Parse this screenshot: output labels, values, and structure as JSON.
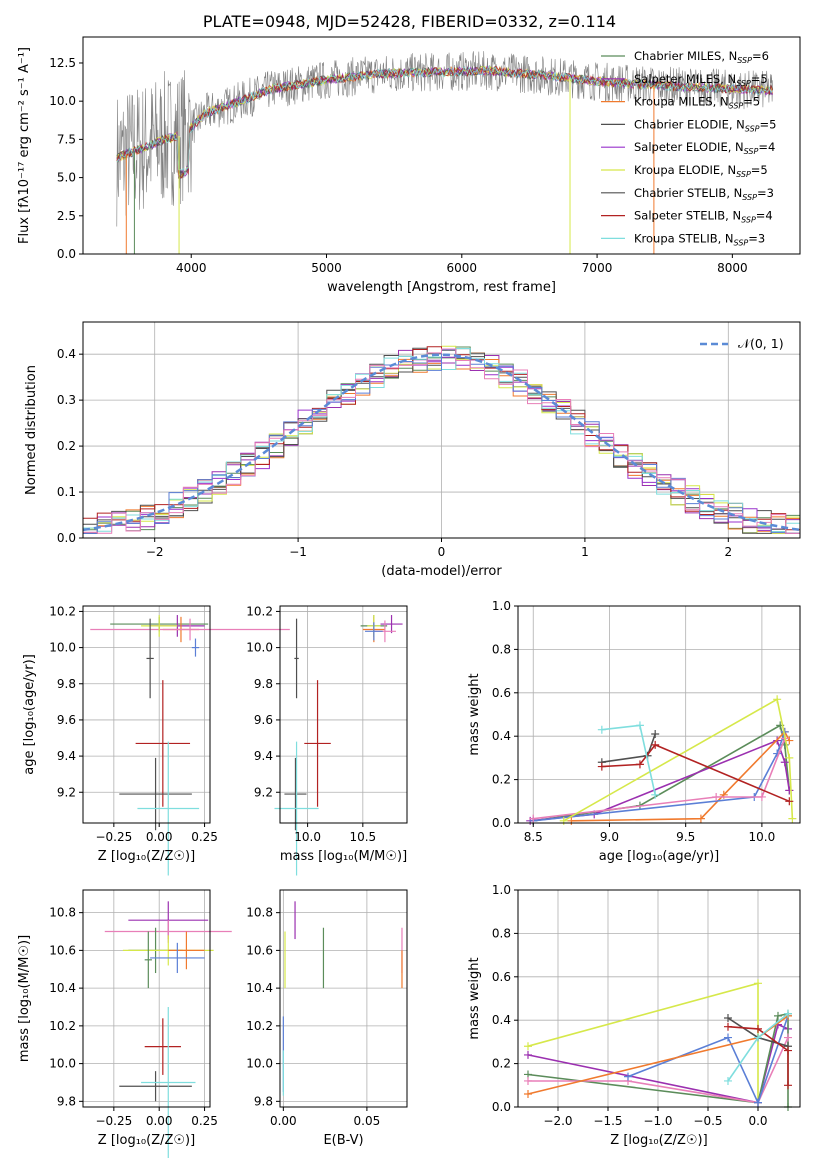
{
  "figure": {
    "title": "PLATE=0948, MJD=52428, FIBERID=0332, z=0.114",
    "colors": {
      "chabrier_miles": "#5b8c5a",
      "salpeter_miles": "#9b30b0",
      "kroupa_miles": "#f07a2e",
      "chabrier_elodie": "#4f4f4f",
      "salpeter_elodie": "#9932cc",
      "kroupa_elodie": "#d6e84a",
      "chabrier_stelib": "#505050",
      "salpeter_stelib": "#b22222",
      "kroupa_stelib": "#7fdede",
      "blue": "#5b7fd6",
      "pink": "#e87fb8",
      "gray": "#808080",
      "normal": "#5b8bd6"
    }
  },
  "chart_data": [
    {
      "type": "line",
      "id": "spectrum",
      "xlabel": "wavelength [Angstrom, rest frame]",
      "ylabel": "Flux [fλ10⁻¹⁷ erg cm⁻² s⁻¹ A⁻¹]",
      "xlim": [
        3200,
        8500
      ],
      "ylim": [
        0,
        14.2
      ],
      "xticks": [
        4000,
        5000,
        6000,
        7000,
        8000
      ],
      "yticks": [
        0.0,
        2.5,
        5.0,
        7.5,
        10.0,
        12.5
      ],
      "legend": "top-right",
      "series": [
        {
          "name": "Chabrier MILES, N_SSP=6",
          "label_main": "Chabrier MILES, N",
          "label_sub": "SSP",
          "label_end": "=6",
          "color": "#5b8c5a"
        },
        {
          "name": "Salpeter MILES, N_SSP=5",
          "label_main": "Salpeter MILES, N",
          "label_sub": "SSP",
          "label_end": "=5",
          "color": "#9b30b0"
        },
        {
          "name": "Kroupa MILES, N_SSP=5",
          "label_main": "Kroupa MILES, N",
          "label_sub": "SSP",
          "label_end": "=5",
          "color": "#f07a2e"
        },
        {
          "name": "Chabrier ELODIE, N_SSP=5",
          "label_main": "Chabrier ELODIE, N",
          "label_sub": "SSP",
          "label_end": "=5",
          "color": "#4f4f4f"
        },
        {
          "name": "Salpeter ELODIE, N_SSP=4",
          "label_main": "Salpeter ELODIE, N",
          "label_sub": "SSP",
          "label_end": "=4",
          "color": "#9932cc"
        },
        {
          "name": "Kroupa ELODIE, N_SSP=5",
          "label_main": "Kroupa ELODIE, N",
          "label_sub": "SSP",
          "label_end": "=5",
          "color": "#d6e84a"
        },
        {
          "name": "Chabrier STELIB, N_SSP=3",
          "label_main": "Chabrier STELIB, N",
          "label_sub": "SSP",
          "label_end": "=3",
          "color": "#505050"
        },
        {
          "name": "Salpeter STELIB, N_SSP=4",
          "label_main": "Salpeter STELIB, N",
          "label_sub": "SSP",
          "label_end": "=4",
          "color": "#b22222"
        },
        {
          "name": "Kroupa STELIB, N_SSP=3",
          "label_main": "Kroupa STELIB, N",
          "label_sub": "SSP",
          "label_end": "=3",
          "color": "#7fdede"
        }
      ],
      "continuum": [
        [
          3450,
          6.3
        ],
        [
          3600,
          6.8
        ],
        [
          3800,
          7.5
        ],
        [
          3950,
          7.8
        ],
        [
          4100,
          9.2
        ],
        [
          4300,
          9.8
        ],
        [
          4600,
          10.8
        ],
        [
          5000,
          11.4
        ],
        [
          5400,
          11.8
        ],
        [
          5800,
          11.9
        ],
        [
          6200,
          12.0
        ],
        [
          6600,
          11.7
        ],
        [
          7000,
          11.3
        ],
        [
          7500,
          11.0
        ],
        [
          8000,
          10.8
        ],
        [
          8300,
          10.7
        ]
      ]
    },
    {
      "type": "bar",
      "id": "residuals",
      "xlabel": "(data-model)/error",
      "ylabel": "Normed distribution",
      "xlim": [
        -2.5,
        2.5
      ],
      "ylim": [
        0,
        0.47
      ],
      "xticks": [
        -2,
        -1,
        0,
        1,
        2
      ],
      "yticks": [
        0.0,
        0.1,
        0.2,
        0.3,
        0.4
      ],
      "grid": true,
      "legend_label": "𝒩(0, 1)",
      "bin_width": 0.1
    },
    {
      "type": "scatter",
      "id": "age-vs-z",
      "xlabel": "Z [log₁₀(Z/Z☉)]",
      "ylabel": "age  [log₁₀(age/yr)]",
      "xlim": [
        -0.42,
        0.28
      ],
      "ylim": [
        9.03,
        10.23
      ],
      "xticks": [
        -0.25,
        0.0,
        0.25
      ],
      "yticks": [
        9.2,
        9.4,
        9.6,
        9.8,
        10.0,
        10.2
      ],
      "points": [
        {
          "x": 0.0,
          "y": 10.13,
          "xerr": 0.27,
          "yerr": 0.04,
          "color": "#5b8c5a"
        },
        {
          "x": 0.1,
          "y": 10.12,
          "xerr": 0.15,
          "yerr": 0.06,
          "color": "#9b30b0"
        },
        {
          "x": 0.12,
          "y": 10.1,
          "xerr": 0.1,
          "yerr": 0.07,
          "color": "#f07a2e"
        },
        {
          "x": 0.17,
          "y": 10.1,
          "xerr": 0.55,
          "yerr": 0.06,
          "color": "#e87fb8"
        },
        {
          "x": 0.0,
          "y": 10.12,
          "xerr": 0.1,
          "yerr": 0.06,
          "color": "#d6e84a"
        },
        {
          "x": -0.05,
          "y": 9.94,
          "xerr": 0.02,
          "yerr": 0.22,
          "color": "#4f4f4f"
        },
        {
          "x": 0.02,
          "y": 9.47,
          "xerr": 0.15,
          "yerr": 0.35,
          "color": "#b22222"
        },
        {
          "x": -0.02,
          "y": 9.19,
          "xerr": 0.2,
          "yerr": 0.2,
          "color": "#505050"
        },
        {
          "x": 0.05,
          "y": 9.11,
          "xerr": 0.17,
          "yerr": 0.37,
          "color": "#7fdede"
        },
        {
          "x": 0.2,
          "y": 10.0,
          "xerr": 0.02,
          "yerr": 0.05,
          "color": "#5b7fd6"
        }
      ]
    },
    {
      "type": "scatter",
      "id": "age-vs-mass",
      "xlabel": "mass [log₁₀(M/M☉)]",
      "ylabel": "",
      "xlim": [
        9.75,
        10.9
      ],
      "ylim": [
        9.03,
        10.23
      ],
      "xticks": [
        10.0,
        10.5
      ],
      "yticks": [
        9.2,
        9.4,
        9.6,
        9.8,
        10.0,
        10.2
      ],
      "points": [
        {
          "x": 10.6,
          "y": 10.12,
          "xerr": 0.12,
          "yerr": 0.06,
          "color": "#5b8c5a"
        },
        {
          "x": 10.76,
          "y": 10.13,
          "xerr": 0.1,
          "yerr": 0.05,
          "color": "#9b30b0"
        },
        {
          "x": 10.6,
          "y": 10.1,
          "xerr": 0.1,
          "yerr": 0.07,
          "color": "#f07a2e"
        },
        {
          "x": 10.7,
          "y": 10.09,
          "xerr": 0.1,
          "yerr": 0.06,
          "color": "#e87fb8"
        },
        {
          "x": 10.6,
          "y": 10.12,
          "xerr": 0.06,
          "yerr": 0.06,
          "color": "#d6e84a"
        },
        {
          "x": 9.9,
          "y": 9.94,
          "xerr": 0.02,
          "yerr": 0.22,
          "color": "#4f4f4f"
        },
        {
          "x": 10.09,
          "y": 9.47,
          "xerr": 0.12,
          "yerr": 0.35,
          "color": "#b22222"
        },
        {
          "x": 9.89,
          "y": 9.19,
          "xerr": 0.1,
          "yerr": 0.2,
          "color": "#505050"
        },
        {
          "x": 9.9,
          "y": 9.11,
          "xerr": 0.2,
          "yerr": 0.37,
          "color": "#7fdede"
        },
        {
          "x": 10.6,
          "y": 10.09,
          "xerr": 0.08,
          "yerr": 0.05,
          "color": "#5b7fd6"
        }
      ]
    },
    {
      "type": "line",
      "id": "massweight-vs-age",
      "xlabel": "age  [log₁₀(age/yr)]",
      "ylabel": "mass weight",
      "xlim": [
        8.4,
        10.25
      ],
      "ylim": [
        0,
        1.0
      ],
      "xticks": [
        8.5,
        9.0,
        9.5,
        10.0
      ],
      "yticks": [
        0.0,
        0.2,
        0.4,
        0.6,
        0.8,
        1.0
      ],
      "grid": true,
      "series": [
        {
          "color": "#5b8c5a",
          "points": [
            [
              8.5,
              0.01
            ],
            [
              9.2,
              0.08
            ],
            [
              10.12,
              0.45
            ],
            [
              10.15,
              0.36
            ],
            [
              10.18,
              0.15
            ]
          ]
        },
        {
          "color": "#9b30b0",
          "points": [
            [
              8.48,
              0.01
            ],
            [
              8.9,
              0.04
            ],
            [
              10.1,
              0.38
            ],
            [
              10.15,
              0.28
            ],
            [
              10.18,
              0.15
            ]
          ]
        },
        {
          "color": "#f07a2e",
          "points": [
            [
              8.75,
              0.01
            ],
            [
              9.6,
              0.02
            ],
            [
              9.75,
              0.13
            ],
            [
              10.15,
              0.42
            ],
            [
              10.18,
              0.38
            ]
          ]
        },
        {
          "color": "#5b7fd6",
          "points": [
            [
              8.5,
              0.01
            ],
            [
              9.95,
              0.12
            ],
            [
              10.1,
              0.32
            ],
            [
              10.15,
              0.42
            ]
          ]
        },
        {
          "color": "#e87fb8",
          "points": [
            [
              8.5,
              0.02
            ],
            [
              9.7,
              0.12
            ],
            [
              10.0,
              0.12
            ],
            [
              10.15,
              0.39
            ]
          ]
        },
        {
          "color": "#d6e84a",
          "points": [
            [
              8.7,
              0.01
            ],
            [
              10.1,
              0.57
            ],
            [
              10.18,
              0.3
            ],
            [
              10.2,
              0.02
            ]
          ]
        },
        {
          "color": "#505050",
          "points": [
            [
              8.95,
              0.28
            ],
            [
              9.25,
              0.31
            ],
            [
              9.3,
              0.41
            ]
          ]
        },
        {
          "color": "#b22222",
          "points": [
            [
              8.95,
              0.26
            ],
            [
              9.2,
              0.27
            ],
            [
              9.3,
              0.36
            ],
            [
              10.18,
              0.1
            ]
          ]
        },
        {
          "color": "#7fdede",
          "points": [
            [
              8.95,
              0.43
            ],
            [
              9.2,
              0.45
            ],
            [
              9.3,
              0.13
            ]
          ]
        }
      ]
    },
    {
      "type": "scatter",
      "id": "mass-vs-z",
      "xlabel": "Z [log₁₀(Z/Z☉)]",
      "ylabel": "mass [log₁₀(M/M☉)]",
      "xlim": [
        -0.42,
        0.28
      ],
      "ylim": [
        9.77,
        10.92
      ],
      "xticks": [
        -0.25,
        0.0,
        0.25
      ],
      "yticks": [
        9.8,
        10.0,
        10.2,
        10.4,
        10.6,
        10.8
      ],
      "points": [
        {
          "x": 0.05,
          "y": 10.76,
          "xerr": 0.22,
          "yerr": 0.1,
          "color": "#9b30b0"
        },
        {
          "x": 0.05,
          "y": 10.7,
          "xerr": 0.35,
          "yerr": 0.06,
          "color": "#e87fb8"
        },
        {
          "x": -0.02,
          "y": 10.6,
          "xerr": 0.15,
          "yerr": 0.12,
          "color": "#5b8c5a"
        },
        {
          "x": 0.05,
          "y": 10.6,
          "xerr": 0.25,
          "yerr": 0.08,
          "color": "#d6e84a"
        },
        {
          "x": 0.15,
          "y": 10.6,
          "xerr": 0.1,
          "yerr": 0.1,
          "color": "#f07a2e"
        },
        {
          "x": 0.1,
          "y": 10.56,
          "xerr": 0.15,
          "yerr": 0.08,
          "color": "#5b7fd6"
        },
        {
          "x": -0.06,
          "y": 10.55,
          "xerr": 0.02,
          "yerr": 0.15,
          "color": "#5b8c5a"
        },
        {
          "x": 0.02,
          "y": 10.09,
          "xerr": 0.1,
          "yerr": 0.15,
          "color": "#b22222"
        },
        {
          "x": -0.02,
          "y": 9.88,
          "xerr": 0.2,
          "yerr": 0.08,
          "color": "#505050"
        },
        {
          "x": 0.05,
          "y": 9.9,
          "xerr": 0.15,
          "yerr": 0.4,
          "color": "#7fdede"
        }
      ]
    },
    {
      "type": "scatter",
      "id": "mass-vs-ebv",
      "xlabel": "E(B-V)",
      "ylabel": "",
      "xlim": [
        -0.002,
        0.074
      ],
      "ylim": [
        9.77,
        10.92
      ],
      "xticks": [
        0.0,
        0.05
      ],
      "yticks": [
        9.8,
        10.0,
        10.2,
        10.4,
        10.6,
        10.8
      ],
      "points": [
        {
          "x": 0.007,
          "y": 10.76,
          "xerr": 0,
          "yerr": 0.1,
          "color": "#9b30b0"
        },
        {
          "x": 0.071,
          "y": 10.6,
          "xerr": 0,
          "yerr": 0.12,
          "color": "#e87fb8"
        },
        {
          "x": 0.071,
          "y": 10.5,
          "xerr": 0,
          "yerr": 0.1,
          "color": "#f07a2e"
        },
        {
          "x": 0.024,
          "y": 10.56,
          "xerr": 0,
          "yerr": 0.16,
          "color": "#5b8c5a"
        },
        {
          "x": 0.001,
          "y": 10.55,
          "xerr": 0,
          "yerr": 0.15,
          "color": "#d6e84a"
        },
        {
          "x": 0.0,
          "y": 10.05,
          "xerr": 0,
          "yerr": 0.2,
          "color": "#5b7fd6"
        },
        {
          "x": 0.0,
          "y": 9.95,
          "xerr": 0,
          "yerr": 0.12,
          "color": "#7fdede"
        }
      ]
    },
    {
      "type": "line",
      "id": "massweight-vs-z",
      "xlabel": "Z [log₁₀(Z/Z☉)]",
      "ylabel": "mass weight",
      "xlim": [
        -2.4,
        0.42
      ],
      "ylim": [
        0,
        1.0
      ],
      "xticks": [
        -2.0,
        -1.5,
        -1.0,
        -0.5,
        0.0
      ],
      "yticks": [
        0.0,
        0.2,
        0.4,
        0.6,
        0.8,
        1.0
      ],
      "grid": true,
      "series": [
        {
          "color": "#d6e84a",
          "points": [
            [
              -2.3,
              0.28
            ],
            [
              0.0,
              0.57
            ],
            [
              0.0,
              0.02
            ]
          ]
        },
        {
          "color": "#9b30b0",
          "points": [
            [
              -2.3,
              0.24
            ],
            [
              0.0,
              0.02
            ],
            [
              0.2,
              0.38
            ],
            [
              0.3,
              0.36
            ]
          ]
        },
        {
          "color": "#5b8c5a",
          "points": [
            [
              -2.3,
              0.15
            ],
            [
              0.0,
              0.02
            ],
            [
              0.2,
              0.42
            ],
            [
              0.3,
              0.43
            ],
            [
              0.3,
              0.0
            ]
          ]
        },
        {
          "color": "#e87fb8",
          "points": [
            [
              -2.3,
              0.12
            ],
            [
              -1.3,
              0.12
            ],
            [
              0.0,
              0.02
            ],
            [
              0.3,
              0.32
            ]
          ]
        },
        {
          "color": "#5b7fd6",
          "points": [
            [
              -1.3,
              0.14
            ],
            [
              -0.3,
              0.32
            ],
            [
              0.0,
              0.02
            ],
            [
              0.3,
              0.42
            ]
          ]
        },
        {
          "color": "#f07a2e",
          "points": [
            [
              -2.3,
              0.06
            ],
            [
              0.0,
              0.32
            ],
            [
              0.3,
              0.42
            ]
          ]
        },
        {
          "color": "#505050",
          "points": [
            [
              -0.3,
              0.41
            ],
            [
              0.0,
              0.32
            ],
            [
              0.3,
              0.28
            ]
          ]
        },
        {
          "color": "#b22222",
          "points": [
            [
              -0.3,
              0.37
            ],
            [
              0.0,
              0.36
            ],
            [
              0.3,
              0.26
            ],
            [
              0.3,
              0.1
            ]
          ]
        },
        {
          "color": "#7fdede",
          "points": [
            [
              -0.3,
              0.12
            ],
            [
              0.0,
              0.32
            ],
            [
              0.3,
              0.43
            ]
          ]
        }
      ]
    }
  ]
}
